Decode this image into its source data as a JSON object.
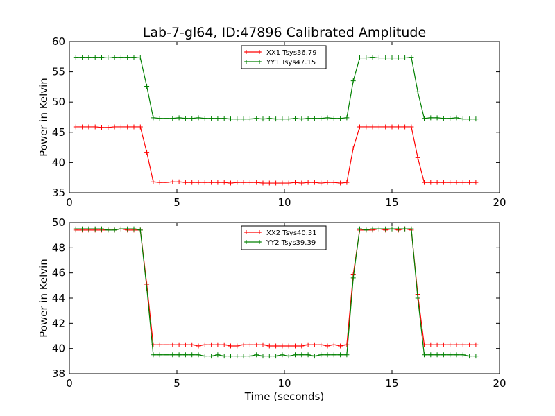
{
  "figure": {
    "title": "Lab-7-gl64, ID:47896 Calibrated Amplitude"
  },
  "colors": {
    "xx": "#ff0000",
    "yy": "#008000"
  },
  "chart_data": [
    {
      "type": "line",
      "ylabel": "Power in Kelvin",
      "xlabel": "",
      "xlim": [
        0,
        20
      ],
      "ylim": [
        35,
        60
      ],
      "xticks": [
        0,
        5,
        10,
        15,
        20
      ],
      "yticks": [
        35,
        40,
        45,
        50,
        55,
        60
      ],
      "grid": false,
      "legend": "top-center",
      "x": [
        0.3,
        0.6,
        0.9,
        1.2,
        1.5,
        1.8,
        2.1,
        2.4,
        2.7,
        3.0,
        3.3,
        3.6,
        3.9,
        4.2,
        4.5,
        4.8,
        5.1,
        5.4,
        5.7,
        6.0,
        6.3,
        6.6,
        6.9,
        7.2,
        7.5,
        7.8,
        8.1,
        8.4,
        8.7,
        9.0,
        9.3,
        9.6,
        9.9,
        10.2,
        10.5,
        10.8,
        11.1,
        11.4,
        11.7,
        12.0,
        12.3,
        12.6,
        12.9,
        13.2,
        13.5,
        13.8,
        14.1,
        14.4,
        14.7,
        15.0,
        15.3,
        15.6,
        15.9,
        16.2,
        16.5,
        16.8,
        17.1,
        17.4,
        17.7,
        18.0,
        18.3,
        18.6,
        18.9
      ],
      "series": [
        {
          "name": "XX1 Tsys36.79",
          "color": "#ff0000",
          "values": [
            45.9,
            45.9,
            45.9,
            45.9,
            45.8,
            45.8,
            45.9,
            45.9,
            45.9,
            45.9,
            45.9,
            41.7,
            36.8,
            36.7,
            36.7,
            36.8,
            36.8,
            36.7,
            36.7,
            36.7,
            36.7,
            36.7,
            36.7,
            36.7,
            36.6,
            36.7,
            36.7,
            36.7,
            36.7,
            36.6,
            36.6,
            36.6,
            36.6,
            36.6,
            36.7,
            36.6,
            36.7,
            36.7,
            36.6,
            36.7,
            36.7,
            36.6,
            36.7,
            42.4,
            45.9,
            45.9,
            45.9,
            45.9,
            45.9,
            45.9,
            45.9,
            45.9,
            45.9,
            40.8,
            36.7,
            36.7,
            36.7,
            36.7,
            36.7,
            36.7,
            36.7,
            36.7,
            36.7
          ]
        },
        {
          "name": "YY1 Tsys47.15",
          "color": "#008000",
          "values": [
            57.4,
            57.4,
            57.4,
            57.4,
            57.4,
            57.3,
            57.4,
            57.4,
            57.4,
            57.4,
            57.3,
            52.6,
            47.4,
            47.3,
            47.3,
            47.3,
            47.4,
            47.3,
            47.3,
            47.4,
            47.3,
            47.3,
            47.3,
            47.3,
            47.2,
            47.2,
            47.2,
            47.2,
            47.3,
            47.2,
            47.3,
            47.2,
            47.2,
            47.2,
            47.3,
            47.2,
            47.3,
            47.3,
            47.3,
            47.4,
            47.3,
            47.3,
            47.4,
            53.5,
            57.3,
            57.3,
            57.4,
            57.3,
            57.3,
            57.3,
            57.3,
            57.3,
            57.4,
            51.7,
            47.3,
            47.4,
            47.4,
            47.3,
            47.3,
            47.4,
            47.2,
            47.2,
            47.2
          ]
        }
      ]
    },
    {
      "type": "line",
      "ylabel": "Power in Kelvin",
      "xlabel": "Time (seconds)",
      "xlim": [
        0,
        20
      ],
      "ylim": [
        38,
        50
      ],
      "xticks": [
        0,
        5,
        10,
        15,
        20
      ],
      "yticks": [
        38,
        40,
        42,
        44,
        46,
        48,
        50
      ],
      "grid": false,
      "legend": "top-center",
      "x": [
        0.3,
        0.6,
        0.9,
        1.2,
        1.5,
        1.8,
        2.1,
        2.4,
        2.7,
        3.0,
        3.3,
        3.6,
        3.9,
        4.2,
        4.5,
        4.8,
        5.1,
        5.4,
        5.7,
        6.0,
        6.3,
        6.6,
        6.9,
        7.2,
        7.5,
        7.8,
        8.1,
        8.4,
        8.7,
        9.0,
        9.3,
        9.6,
        9.9,
        10.2,
        10.5,
        10.8,
        11.1,
        11.4,
        11.7,
        12.0,
        12.3,
        12.6,
        12.9,
        13.2,
        13.5,
        13.8,
        14.1,
        14.4,
        14.7,
        15.0,
        15.3,
        15.6,
        15.9,
        16.2,
        16.5,
        16.8,
        17.1,
        17.4,
        17.7,
        18.0,
        18.3,
        18.6,
        18.9
      ],
      "series": [
        {
          "name": "XX2 Tsys40.31",
          "color": "#ff0000",
          "values": [
            49.4,
            49.4,
            49.4,
            49.4,
            49.4,
            49.4,
            49.4,
            49.5,
            49.4,
            49.4,
            49.4,
            45.1,
            40.3,
            40.3,
            40.3,
            40.3,
            40.3,
            40.3,
            40.3,
            40.2,
            40.3,
            40.3,
            40.3,
            40.3,
            40.2,
            40.2,
            40.3,
            40.3,
            40.3,
            40.3,
            40.2,
            40.2,
            40.2,
            40.2,
            40.2,
            40.2,
            40.3,
            40.3,
            40.3,
            40.2,
            40.3,
            40.2,
            40.3,
            45.9,
            49.4,
            49.4,
            49.4,
            49.5,
            49.4,
            49.5,
            49.4,
            49.5,
            49.4,
            44.3,
            40.3,
            40.3,
            40.3,
            40.3,
            40.3,
            40.3,
            40.3,
            40.3,
            40.3
          ]
        },
        {
          "name": "YY2 Tsys39.39",
          "color": "#008000",
          "values": [
            49.5,
            49.5,
            49.5,
            49.5,
            49.5,
            49.4,
            49.4,
            49.5,
            49.5,
            49.5,
            49.4,
            44.8,
            39.5,
            39.5,
            39.5,
            39.5,
            39.5,
            39.5,
            39.5,
            39.5,
            39.4,
            39.4,
            39.5,
            39.4,
            39.4,
            39.4,
            39.4,
            39.4,
            39.5,
            39.4,
            39.4,
            39.4,
            39.5,
            39.4,
            39.5,
            39.5,
            39.5,
            39.4,
            39.5,
            39.5,
            39.5,
            39.5,
            39.5,
            45.6,
            49.5,
            49.4,
            49.5,
            49.5,
            49.5,
            49.5,
            49.5,
            49.5,
            49.5,
            44.0,
            39.5,
            39.5,
            39.5,
            39.5,
            39.5,
            39.5,
            39.5,
            39.4,
            39.4
          ]
        }
      ]
    }
  ]
}
